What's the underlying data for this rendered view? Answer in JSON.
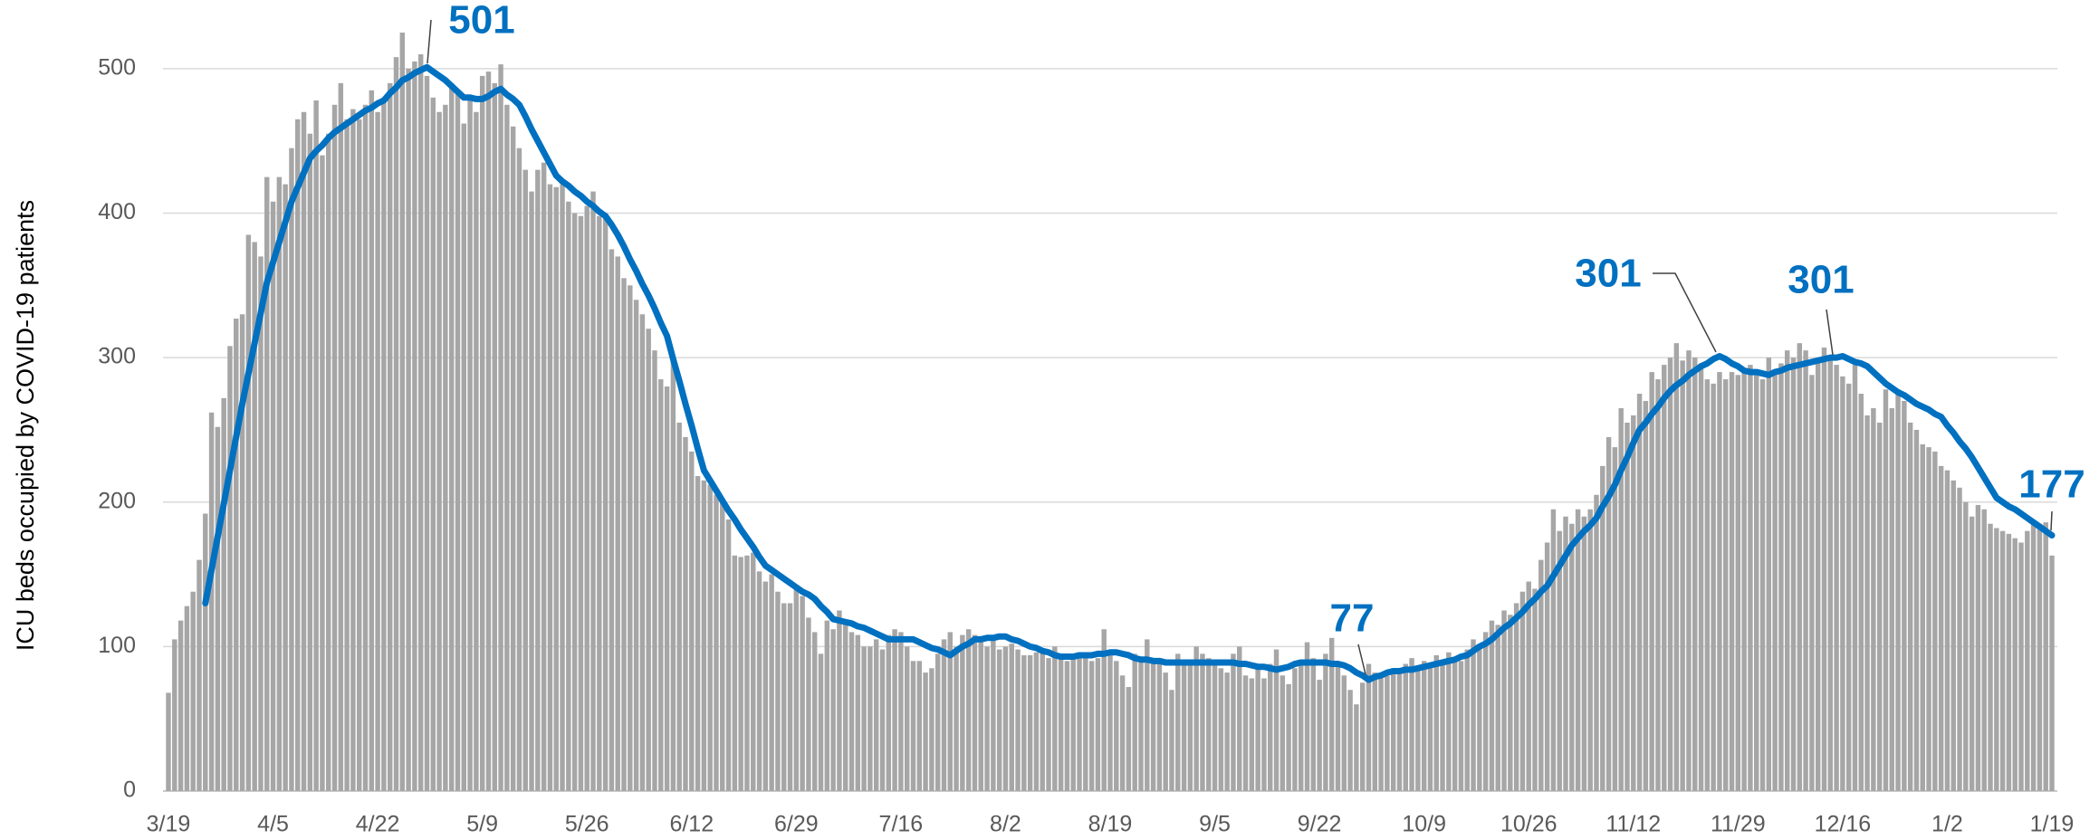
{
  "chart_data": {
    "type": "bar",
    "ylabel": "ICU beds occupied by COVID-19 patients",
    "categories": [
      "3/19",
      null,
      null,
      null,
      null,
      null,
      null,
      null,
      null,
      null,
      null,
      null,
      null,
      null,
      null,
      null,
      null,
      "4/5",
      null,
      null,
      null,
      null,
      null,
      null,
      null,
      null,
      null,
      null,
      null,
      null,
      null,
      null,
      null,
      null,
      "4/22",
      null,
      null,
      null,
      null,
      null,
      null,
      null,
      null,
      null,
      null,
      null,
      null,
      null,
      null,
      null,
      null,
      "5/9",
      null,
      null,
      null,
      null,
      null,
      null,
      null,
      null,
      null,
      null,
      null,
      null,
      null,
      null,
      null,
      null,
      "5/26",
      null,
      null,
      null,
      null,
      null,
      null,
      null,
      null,
      null,
      null,
      null,
      null,
      null,
      null,
      null,
      null,
      "6/12",
      null,
      null,
      null,
      null,
      null,
      null,
      null,
      null,
      null,
      null,
      null,
      null,
      null,
      null,
      null,
      null,
      "6/29",
      null,
      null,
      null,
      null,
      null,
      null,
      null,
      null,
      null,
      null,
      null,
      null,
      null,
      null,
      null,
      null,
      "7/16",
      null,
      null,
      null,
      null,
      null,
      null,
      null,
      null,
      null,
      null,
      null,
      null,
      null,
      null,
      null,
      null,
      "8/2",
      null,
      null,
      null,
      null,
      null,
      null,
      null,
      null,
      null,
      null,
      null,
      null,
      null,
      null,
      null,
      null,
      "8/19",
      null,
      null,
      null,
      null,
      null,
      null,
      null,
      null,
      null,
      null,
      null,
      null,
      null,
      null,
      null,
      null,
      "9/5",
      null,
      null,
      null,
      null,
      null,
      null,
      null,
      null,
      null,
      null,
      null,
      null,
      null,
      null,
      null,
      null,
      "9/22",
      null,
      null,
      null,
      null,
      null,
      null,
      null,
      null,
      null,
      null,
      null,
      null,
      null,
      null,
      null,
      null,
      "10/9",
      null,
      null,
      null,
      null,
      null,
      null,
      null,
      null,
      null,
      null,
      null,
      null,
      null,
      null,
      null,
      null,
      "10/26",
      null,
      null,
      null,
      null,
      null,
      null,
      null,
      null,
      null,
      null,
      null,
      null,
      null,
      null,
      null,
      null,
      "11/12",
      null,
      null,
      null,
      null,
      null,
      null,
      null,
      null,
      null,
      null,
      null,
      null,
      null,
      null,
      null,
      null,
      "11/29",
      null,
      null,
      null,
      null,
      null,
      null,
      null,
      null,
      null,
      null,
      null,
      null,
      null,
      null,
      null,
      null,
      "12/16",
      null,
      null,
      null,
      null,
      null,
      null,
      null,
      null,
      null,
      null,
      null,
      null,
      null,
      null,
      null,
      null,
      "1/2",
      null,
      null,
      null,
      null,
      null,
      null,
      null,
      null,
      null,
      null,
      null,
      null,
      null,
      null,
      null,
      null,
      "1/19"
    ],
    "series": [
      {
        "type": "bar",
        "color": "#a6a6a6",
        "values": [
          68,
          105,
          118,
          128,
          138,
          160,
          192,
          262,
          252,
          272,
          308,
          327,
          330,
          385,
          380,
          370,
          425,
          408,
          425,
          420,
          445,
          465,
          470,
          455,
          478,
          440,
          455,
          475,
          490,
          465,
          472,
          465,
          475,
          485,
          470,
          480,
          490,
          508,
          525,
          500,
          505,
          510,
          495,
          480,
          470,
          475,
          490,
          485,
          462,
          480,
          470,
          495,
          498,
          490,
          503,
          475,
          460,
          445,
          430,
          415,
          430,
          435,
          420,
          418,
          420,
          408,
          400,
          398,
          405,
          415,
          398,
          400,
          375,
          370,
          355,
          350,
          340,
          330,
          320,
          305,
          285,
          280,
          298,
          255,
          245,
          235,
          218,
          215,
          212,
          205,
          200,
          188,
          163,
          162,
          163,
          165,
          152,
          145,
          150,
          138,
          130,
          130,
          140,
          135,
          120,
          110,
          95,
          118,
          112,
          125,
          118,
          110,
          108,
          100,
          100,
          105,
          98,
          108,
          112,
          110,
          100,
          90,
          90,
          82,
          85,
          95,
          105,
          110,
          100,
          108,
          112,
          108,
          105,
          100,
          105,
          98,
          100,
          102,
          98,
          94,
          94,
          96,
          98,
          92,
          100,
          95,
          90,
          94,
          92,
          95,
          90,
          92,
          112,
          95,
          90,
          80,
          72,
          95,
          92,
          105,
          90,
          88,
          82,
          70,
          95,
          90,
          88,
          100,
          95,
          92,
          90,
          85,
          82,
          95,
          100,
          80,
          78,
          85,
          78,
          88,
          98,
          80,
          74,
          85,
          88,
          103,
          92,
          77,
          95,
          106,
          88,
          80,
          70,
          60,
          75,
          88,
          82,
          78,
          80,
          85,
          82,
          88,
          92,
          85,
          90,
          88,
          94,
          88,
          96,
          92,
          90,
          98,
          105,
          100,
          110,
          118,
          115,
          125,
          122,
          130,
          138,
          145,
          140,
          160,
          172,
          195,
          180,
          190,
          185,
          195,
          190,
          195,
          205,
          225,
          245,
          238,
          265,
          255,
          260,
          275,
          270,
          290,
          285,
          295,
          300,
          310,
          298,
          305,
          300,
          296,
          285,
          282,
          290,
          285,
          290,
          288,
          292,
          295,
          290,
          285,
          300,
          290,
          296,
          305,
          300,
          310,
          305,
          288,
          296,
          307,
          300,
          295,
          287,
          282,
          295,
          275,
          260,
          265,
          255,
          278,
          265,
          278,
          270,
          255,
          250,
          240,
          238,
          235,
          225,
          222,
          215,
          210,
          200,
          190,
          198,
          195,
          185,
          182,
          180,
          178,
          175,
          172,
          180,
          185,
          185,
          186,
          163
        ]
      },
      {
        "type": "line",
        "color": "#0070c0",
        "values": [
          null,
          null,
          null,
          null,
          null,
          null,
          130,
          153,
          176,
          199,
          222,
          245,
          268,
          289,
          310,
          331,
          352,
          366,
          380,
          394,
          408,
          418,
          428,
          438,
          443,
          447,
          452,
          456,
          459,
          462,
          465,
          468,
          471,
          473,
          476,
          478,
          483,
          487,
          492,
          494,
          497,
          499,
          501,
          498,
          495,
          492,
          488,
          484,
          480,
          480,
          479,
          479,
          481,
          484,
          486,
          482,
          479,
          475,
          467,
          458,
          450,
          442,
          434,
          426,
          422,
          419,
          415,
          412,
          408,
          405,
          401,
          398,
          392,
          385,
          377,
          368,
          360,
          351,
          343,
          334,
          324,
          315,
          299,
          284,
          268,
          253,
          237,
          222,
          215,
          208,
          201,
          194,
          188,
          181,
          175,
          169,
          162,
          156,
          153,
          150,
          147,
          144,
          141,
          138,
          136,
          133,
          128,
          124,
          119,
          118,
          117,
          116,
          114,
          113,
          111,
          109,
          107,
          105,
          105,
          105,
          105,
          105,
          103,
          101,
          99,
          98,
          96,
          94,
          97,
          100,
          102,
          105,
          105,
          106,
          106,
          107,
          107,
          105,
          104,
          102,
          100,
          99,
          97,
          96,
          94,
          93,
          93,
          93,
          94,
          94,
          94,
          95,
          95,
          96,
          96,
          95,
          94,
          92,
          91,
          91,
          90,
          90,
          89,
          89,
          89,
          89,
          89,
          89,
          89,
          89,
          89,
          89,
          89,
          89,
          88,
          88,
          87,
          86,
          86,
          85,
          84,
          85,
          86,
          88,
          89,
          89,
          89,
          89,
          89,
          88,
          88,
          87,
          85,
          82,
          80,
          77,
          79,
          80,
          82,
          83,
          83,
          84,
          84,
          85,
          86,
          87,
          88,
          89,
          90,
          91,
          93,
          94,
          97,
          100,
          102,
          105,
          109,
          113,
          116,
          120,
          124,
          129,
          133,
          138,
          142,
          149,
          156,
          163,
          170,
          175,
          180,
          184,
          189,
          197,
          204,
          212,
          222,
          231,
          241,
          250,
          255,
          261,
          266,
          272,
          277,
          281,
          284,
          288,
          291,
          294,
          296,
          299,
          301,
          299,
          296,
          294,
          291,
          290,
          290,
          289,
          288,
          290,
          291,
          293,
          294,
          295,
          296,
          297,
          298,
          299,
          300,
          300,
          301,
          299,
          297,
          296,
          294,
          290,
          286,
          282,
          279,
          276,
          274,
          271,
          268,
          266,
          264,
          261,
          259,
          253,
          248,
          242,
          237,
          231,
          224,
          217,
          210,
          203,
          200,
          197,
          195,
          192,
          189,
          186,
          183,
          180,
          177
        ]
      }
    ],
    "ylim": [
      0,
      530
    ],
    "yticks": [
      0,
      100,
      200,
      300,
      400,
      500
    ],
    "grid": true
  }
}
